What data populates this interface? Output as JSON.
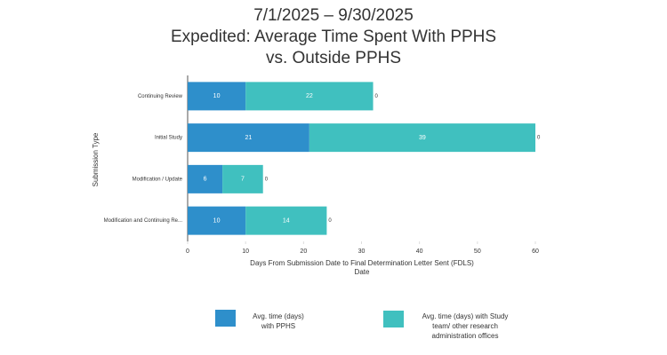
{
  "chart_data": {
    "type": "stacked-barh",
    "title": [
      "7/1/2025 – 9/30/2025",
      "Expedited: Average Time Spent With PPHS",
      "vs. Outside PPHS"
    ],
    "categories": [
      "Continuing Review",
      "Initial Study",
      "Modification / Update",
      "Modification and Continuing Re..."
    ],
    "series": [
      {
        "name": "Avg. time (days) with PPHS",
        "color": "#2e8fcb",
        "values": [
          10,
          21,
          6,
          10
        ]
      },
      {
        "name": "Avg. time (days) with Study team/ other research administration offices",
        "color": "#40c0bf",
        "values": [
          22,
          39,
          7,
          14
        ]
      },
      {
        "color": "#40c0bf",
        "values": [
          0,
          0,
          0,
          0
        ]
      }
    ],
    "xlim": [
      0,
      60
    ],
    "xticks": [
      0,
      10,
      20,
      30,
      40,
      50,
      60
    ],
    "xlabel": [
      "Days From Submission Date to Final Determination Letter Sent (FDLS)",
      "Date"
    ],
    "ylabel": "Submission Type",
    "grid": false
  }
}
